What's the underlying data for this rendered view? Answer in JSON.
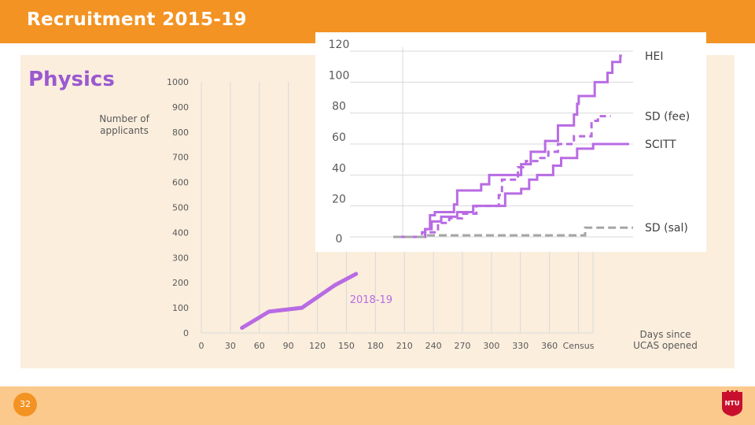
{
  "header": {
    "title": "Recruitment 2015-19"
  },
  "subject": "Physics",
  "footer": {
    "page_number": "32",
    "logo_text": "NTU"
  },
  "colors": {
    "orange": "#f39323",
    "light_orange": "#fcc98c",
    "panel": "#fbeedd",
    "purple": "#b86be3",
    "grey": "#a6a6a6"
  },
  "chart_data": [
    {
      "type": "line",
      "ylabel": "Number of applicants",
      "xlabel": "Days since UCAS opened",
      "ylim": [
        0,
        1000
      ],
      "y_ticks": [
        "0",
        "100",
        "200",
        "300",
        "400",
        "500",
        "600",
        "700",
        "800",
        "900",
        "1000"
      ],
      "x_ticks": [
        "0",
        "30",
        "60",
        "90",
        "120",
        "150",
        "180",
        "210",
        "240",
        "270",
        "300",
        "330",
        "360",
        "Census"
      ],
      "grid": "vertical",
      "series": [
        {
          "name": "2018-19",
          "x": [
            42,
            70,
            104,
            138,
            160
          ],
          "y": [
            20,
            85,
            100,
            190,
            235
          ]
        }
      ]
    },
    {
      "type": "line",
      "ylim": [
        0,
        120
      ],
      "y_ticks": [
        "0",
        "20",
        "40",
        "60",
        "80",
        "100",
        "120"
      ],
      "grid": "horizontal",
      "series": [
        {
          "name": "HEI",
          "style": "solid",
          "x": [
            0,
            40,
            40,
            46,
            46,
            52,
            52,
            76,
            76,
            80,
            80,
            110,
            110,
            120,
            120,
            160,
            160,
            172,
            172,
            190,
            190,
            206,
            206,
            226,
            226,
            230,
            230,
            232,
            232,
            252,
            252,
            268,
            268,
            274,
            274,
            284,
            284,
            286
          ],
          "y": [
            0,
            0,
            5,
            5,
            14,
            14,
            16,
            16,
            21,
            21,
            30,
            30,
            34,
            34,
            40,
            40,
            47,
            47,
            55,
            55,
            62,
            62,
            72,
            72,
            79,
            79,
            86,
            86,
            91,
            91,
            100,
            100,
            106,
            106,
            113,
            113,
            117,
            117
          ]
        },
        {
          "name": "SD (fee)",
          "style": "dashed",
          "x": [
            0,
            36,
            36,
            56,
            56,
            70,
            70,
            86,
            86,
            104,
            104,
            132,
            132,
            136,
            136,
            156,
            156,
            166,
            166,
            184,
            184,
            194,
            194,
            206,
            206,
            226,
            226,
            248,
            248,
            256,
            256,
            272
          ],
          "y": [
            0,
            0,
            3,
            3,
            9,
            9,
            12,
            12,
            15,
            15,
            20,
            20,
            27,
            27,
            37,
            37,
            45,
            45,
            49,
            49,
            51,
            51,
            55,
            55,
            60,
            60,
            65,
            65,
            75,
            75,
            78,
            78
          ]
        },
        {
          "name": "SCITT",
          "style": "solid",
          "x": [
            0,
            40,
            40,
            48,
            48,
            60,
            60,
            80,
            80,
            100,
            100,
            140,
            140,
            160,
            160,
            170,
            170,
            180,
            180,
            200,
            200,
            210,
            210,
            230,
            230,
            250,
            250,
            295
          ],
          "y": [
            0,
            0,
            5,
            5,
            10,
            10,
            13,
            13,
            16,
            16,
            20,
            20,
            28,
            28,
            31,
            31,
            37,
            37,
            40,
            40,
            46,
            46,
            51,
            51,
            57,
            57,
            60,
            60
          ]
        },
        {
          "name": "SD (sal)",
          "style": "dashed-grey",
          "x": [
            0,
            40,
            40,
            240,
            240,
            300
          ],
          "y": [
            0,
            0,
            1,
            1,
            6,
            6
          ]
        }
      ]
    }
  ]
}
